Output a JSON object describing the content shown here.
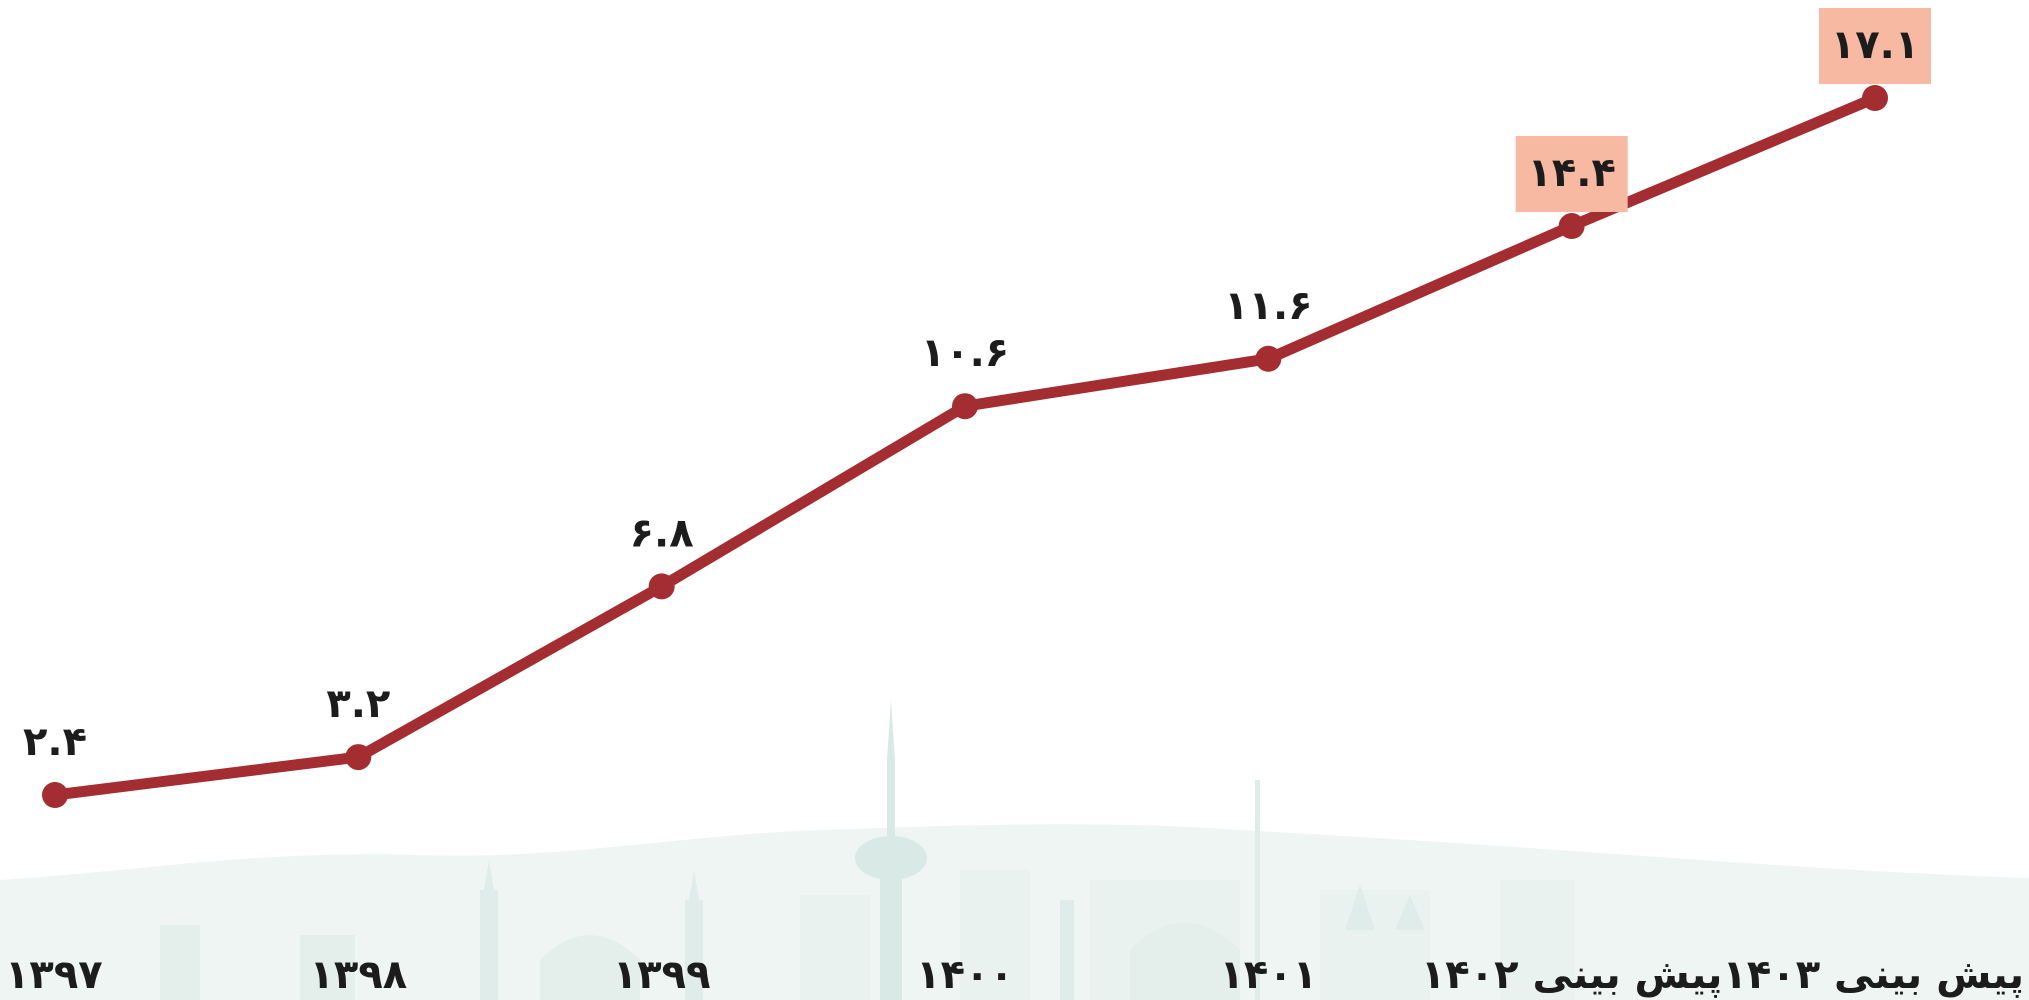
{
  "chart_data": {
    "type": "line",
    "categories": [
      "۱۳۹۷",
      "۱۳۹۸",
      "۱۳۹۹",
      "۱۴۰۰",
      "۱۴۰۱",
      "پیش بینی ۱۴۰۲",
      "پیش بینی ۱۴۰۳"
    ],
    "values": [
      2.4,
      3.2,
      6.8,
      10.6,
      11.6,
      14.4,
      17.1
    ],
    "value_labels": [
      "۲.۴",
      "۳.۲",
      "۶.۸",
      "۱۰.۶",
      "۱۱.۶",
      "۱۴.۴",
      "۱۷.۱"
    ],
    "highlighted_points": [
      5,
      6
    ],
    "title": "",
    "xlabel": "",
    "ylabel": "",
    "ylim": [
      0,
      18.5
    ],
    "grid": false,
    "legend": "none"
  },
  "colors": {
    "line": "#a32d30",
    "highlight_bg": "#f7b9a2",
    "text": "#1c1c1c",
    "skyline": "#e4efec"
  }
}
